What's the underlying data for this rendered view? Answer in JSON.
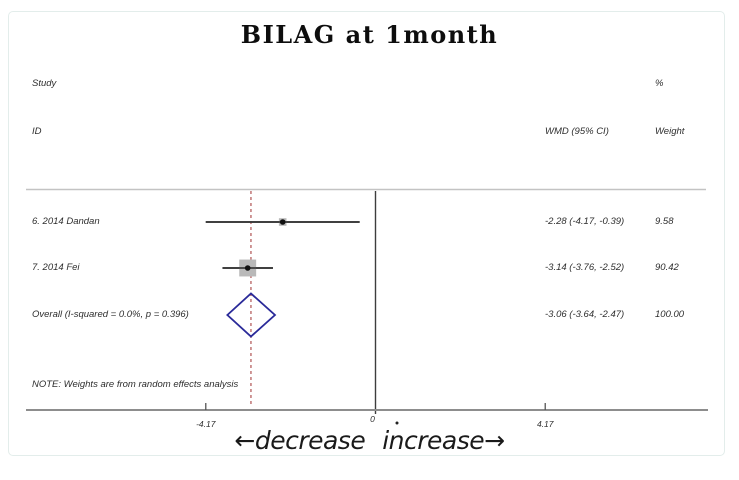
{
  "title": "BILAG at 1month",
  "header": {
    "study": "Study",
    "id": "ID",
    "percent": "%",
    "wmd_ci": "WMD (95% CI)",
    "weight": "Weight"
  },
  "note": "NOTE: Weights are from random effects analysis",
  "annotation": {
    "left": "←decrease",
    "right": "increase→"
  },
  "chart_data": {
    "type": "forest",
    "title": "BILAG at 1month",
    "effect_measure": "WMD (95% CI)",
    "model": "random effects",
    "x_axis": {
      "ticks": [
        -4.17,
        0,
        4.17
      ],
      "tick_labels": [
        "-4.17",
        "0",
        "4.17"
      ]
    },
    "null_value": 0,
    "direction_labels": {
      "left": "decrease",
      "right": "increase"
    },
    "studies": [
      {
        "id": "6. 2014 Dandan",
        "wmd": -2.28,
        "ci_low": -4.17,
        "ci_high": -0.39,
        "weight": 9.58,
        "effect_label": "-2.28 (-4.17, -0.39)",
        "weight_label": "9.58"
      },
      {
        "id": "7. 2014 Fei",
        "wmd": -3.14,
        "ci_low": -3.76,
        "ci_high": -2.52,
        "weight": 90.42,
        "effect_label": "-3.14 (-3.76, -2.52)",
        "weight_label": "90.42"
      }
    ],
    "overall": {
      "id": "Overall  (I-squared = 0.0%, p = 0.396)",
      "wmd": -3.06,
      "ci_low": -3.64,
      "ci_high": -2.47,
      "weight": 100.0,
      "effect_label": "-3.06 (-3.64, -2.47)",
      "weight_label": "100.00"
    },
    "colors": {
      "diamond": "#2a2a99",
      "overall_dashed_line": "#b05353",
      "weight_box": "#b9b9b9",
      "ci_line": "#3a3a3a",
      "marker": "#111111"
    }
  }
}
